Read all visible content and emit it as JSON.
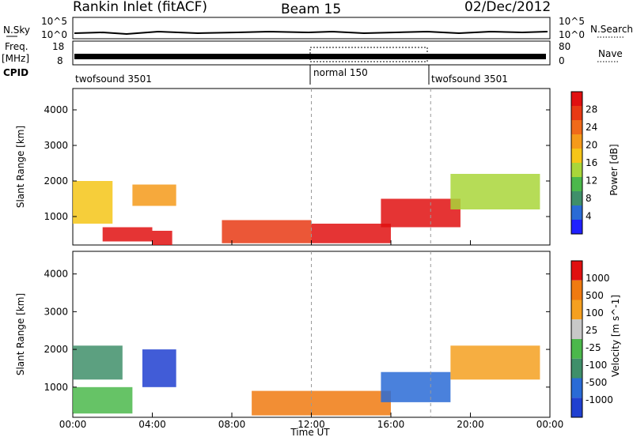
{
  "header": {
    "station": "Rankin Inlet (fitACF)",
    "beam": "Beam 15",
    "date": "02/Dec/2012"
  },
  "strips": {
    "nsky_label": "N.Sky",
    "nsky_ticks": [
      "10^5",
      "10^0"
    ],
    "nsearch_label": "N.Search",
    "freq_label": "Freq.",
    "freq_unit": "[MHz]",
    "freq_ticks": [
      "18",
      "8"
    ],
    "nave_label": "Nave",
    "nave_ticks": [
      "80",
      "0"
    ],
    "cpid_label": "CPID",
    "cpid_segments": [
      {
        "name": "twofsound 3501",
        "start_hour": 0,
        "end_hour": 12
      },
      {
        "name": "normal 150",
        "start_hour": 12,
        "end_hour": 18
      },
      {
        "name": "twofsound 3501",
        "start_hour": 18,
        "end_hour": 24
      }
    ]
  },
  "chart_data": [
    {
      "type": "heatmap",
      "name": "Power",
      "ylabel": "Slant Range [km]",
      "yticks": [
        "1000",
        "2000",
        "3000",
        "4000"
      ],
      "yvalues": [
        1000,
        2000,
        3000,
        4000
      ],
      "ylim": [
        200,
        4600
      ],
      "xlim": [
        0,
        24
      ],
      "colorbar_label": "Power [dB]",
      "colorbar_ticks": [
        "28",
        "24",
        "20",
        "16",
        "12",
        "8",
        "4"
      ],
      "colors": [
        "#2020ff",
        "#2a6bd6",
        "#3f8f6a",
        "#4bb84b",
        "#a9d63a",
        "#f5c518",
        "#f59a1a",
        "#f06a1a",
        "#e83a14",
        "#e01010"
      ],
      "regions": [
        {
          "x0": 0.0,
          "x1": 2.0,
          "y0": 800,
          "y1": 2000,
          "level": 5
        },
        {
          "x0": 1.5,
          "x1": 4.0,
          "y0": 300,
          "y1": 700,
          "level": 9
        },
        {
          "x0": 4.0,
          "x1": 5.0,
          "y0": 200,
          "y1": 600,
          "level": 9
        },
        {
          "x0": 3.0,
          "x1": 5.2,
          "y0": 1300,
          "y1": 1900,
          "level": 6
        },
        {
          "x0": 7.5,
          "x1": 12.0,
          "y0": 250,
          "y1": 900,
          "level": 8
        },
        {
          "x0": 12.0,
          "x1": 16.0,
          "y0": 250,
          "y1": 800,
          "level": 9
        },
        {
          "x0": 15.5,
          "x1": 19.5,
          "y0": 700,
          "y1": 1500,
          "level": 9
        },
        {
          "x0": 19.0,
          "x1": 23.5,
          "y0": 1200,
          "y1": 2200,
          "level": 4
        }
      ]
    },
    {
      "type": "heatmap",
      "name": "Velocity",
      "ylabel": "Slant Range [km]",
      "yticks": [
        "1000",
        "2000",
        "3000",
        "4000"
      ],
      "yvalues": [
        1000,
        2000,
        3000,
        4000
      ],
      "ylim": [
        200,
        4600
      ],
      "xlim": [
        0,
        24
      ],
      "xlabel": "Time UT",
      "xticks": [
        "00:00",
        "04:00",
        "08:00",
        "12:00",
        "16:00",
        "20:00",
        "00:00"
      ],
      "xvalues": [
        0,
        4,
        8,
        12,
        16,
        20,
        24
      ],
      "colorbar_label": "Velocity [m s^-1]",
      "colorbar_ticks": [
        "1000",
        "500",
        "100",
        "25",
        "-25",
        "-100",
        "-500",
        "-1000"
      ],
      "colors": [
        "#2040d0",
        "#2a6bd6",
        "#3f8f6a",
        "#4bb84b",
        "#c8c8c8",
        "#f5a020",
        "#f07a10",
        "#e01010"
      ],
      "regions": [
        {
          "x0": 0.0,
          "x1": 2.5,
          "y0": 1200,
          "y1": 2100,
          "level": 2
        },
        {
          "x0": 0.0,
          "x1": 3.0,
          "y0": 300,
          "y1": 1000,
          "level": 3
        },
        {
          "x0": 3.5,
          "x1": 5.2,
          "y0": 1000,
          "y1": 2000,
          "level": 0
        },
        {
          "x0": 9.0,
          "x1": 16.0,
          "y0": 250,
          "y1": 900,
          "level": 6
        },
        {
          "x0": 15.5,
          "x1": 19.0,
          "y0": 600,
          "y1": 1400,
          "level": 1
        },
        {
          "x0": 19.0,
          "x1": 23.5,
          "y0": 1200,
          "y1": 2100,
          "level": 5
        }
      ]
    }
  ]
}
